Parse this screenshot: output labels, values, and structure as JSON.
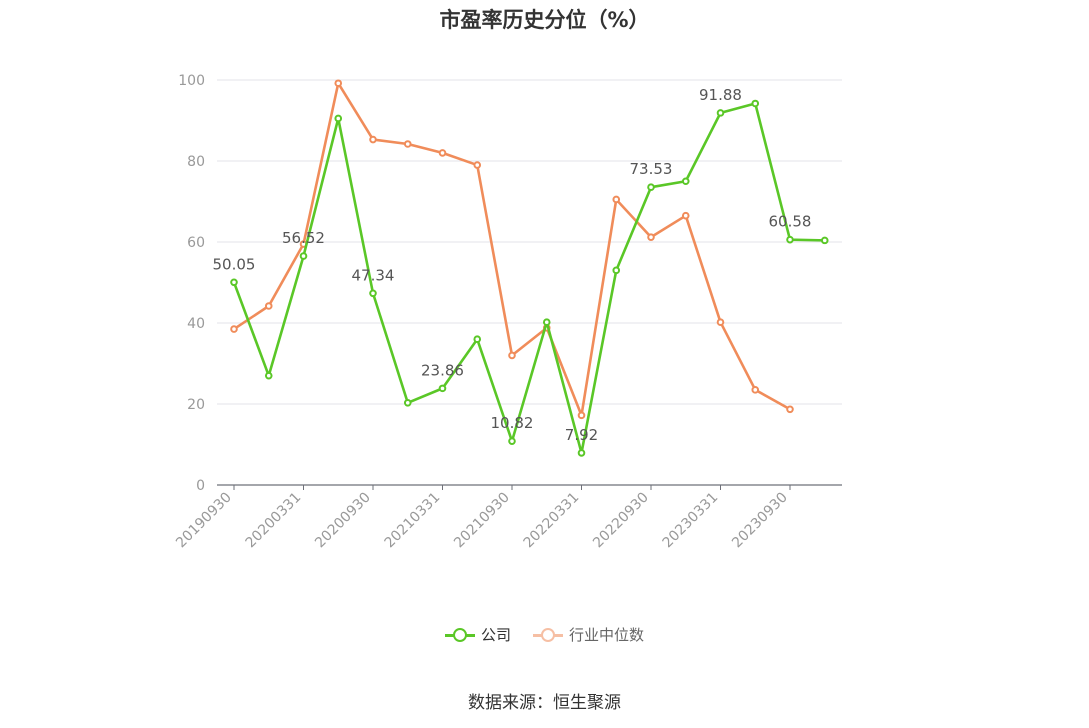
{
  "chart_data": {
    "type": "line",
    "title": "市盈率历史分位（%）",
    "xlabel": "",
    "ylabel": "",
    "ylim": [
      0,
      100
    ],
    "yticks": [
      0,
      20,
      40,
      60,
      80,
      100
    ],
    "x": [
      "20190930",
      "20191231",
      "20200331",
      "20200630",
      "20200930",
      "20201231",
      "20210331",
      "20210630",
      "20210930",
      "20211231",
      "20220331",
      "20220630",
      "20220930",
      "20221231",
      "20230331",
      "20230630",
      "20230930",
      "20231231"
    ],
    "xtick_labels": [
      "20190930",
      "20200331",
      "20200930",
      "20210331",
      "20210930",
      "20220331",
      "20220930",
      "20230331",
      "20230930"
    ],
    "grid": true,
    "legend_position": "bottom",
    "series": [
      {
        "name": "公司",
        "color": "#5ac727",
        "values": [
          50.05,
          27,
          56.52,
          90.5,
          47.34,
          20.3,
          23.86,
          36,
          10.82,
          40.2,
          7.92,
          53,
          73.53,
          75,
          91.88,
          94.2,
          60.58,
          60.4
        ],
        "data_labels": [
          "50.05",
          "",
          "56.52",
          "",
          "47.34",
          "",
          "23.86",
          "",
          "10.82",
          "",
          "7.92",
          "",
          "73.53",
          "",
          "91.88",
          "",
          "60.58",
          ""
        ]
      },
      {
        "name": "行业中位数",
        "color": "#f08c5a",
        "values": [
          38.5,
          44.2,
          59.5,
          99.2,
          85.3,
          84.2,
          82,
          79,
          32,
          38.8,
          17.2,
          70.5,
          61.2,
          66.5,
          40.2,
          23.5,
          18.7,
          null
        ]
      }
    ]
  },
  "footer": {
    "source": "数据来源：恒生聚源"
  }
}
